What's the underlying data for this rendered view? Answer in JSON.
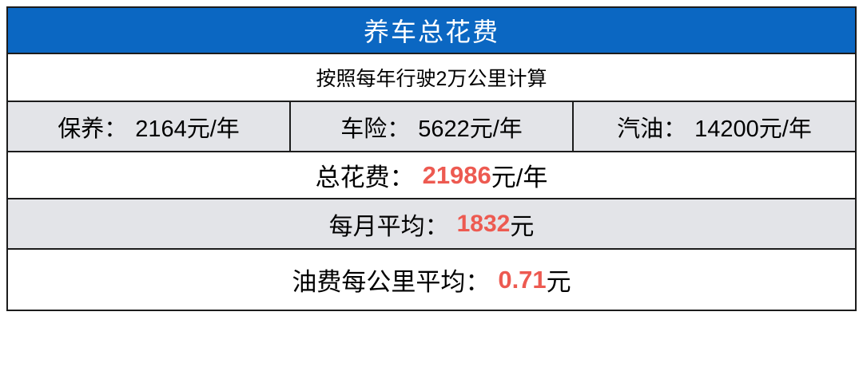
{
  "colors": {
    "header_bg": "#0b67c2",
    "header_text": "#ffffff",
    "alt_row_bg": "#e3e4e8",
    "highlight_red": "#ed5a51",
    "border": "#1c1c1c"
  },
  "table": {
    "title": "养车总花费",
    "subtitle": "按照每年行驶2万公里计算",
    "cost_items": [
      {
        "label": "保养：",
        "amount": "2164元/年"
      },
      {
        "label": "车险：",
        "amount": "5622元/年"
      },
      {
        "label": "汽油：",
        "amount": "14200元/年"
      }
    ],
    "total_row": {
      "prefix": "总花费：",
      "value": "21986",
      "suffix": "元/年"
    },
    "monthly_row": {
      "prefix": "每月平均：",
      "value": "1832",
      "suffix": "元"
    },
    "fuel_row": {
      "prefix": "油费每公里平均：",
      "value": "0.71",
      "suffix": "元"
    }
  },
  "chart_data": {
    "type": "table",
    "title": "养车总花费",
    "subtitle": "按照每年行驶2万公里计算",
    "rows": [
      {
        "label": "保养",
        "value": 2164,
        "unit": "元/年"
      },
      {
        "label": "车险",
        "value": 5622,
        "unit": "元/年"
      },
      {
        "label": "汽油",
        "value": 14200,
        "unit": "元/年"
      },
      {
        "label": "总花费",
        "value": 21986,
        "unit": "元/年"
      },
      {
        "label": "每月平均",
        "value": 1832,
        "unit": "元"
      },
      {
        "label": "油费每公里平均",
        "value": 0.71,
        "unit": "元"
      }
    ],
    "highlighted_values": [
      21986,
      1832,
      0.71
    ],
    "legend_position": "none",
    "grid": true
  }
}
